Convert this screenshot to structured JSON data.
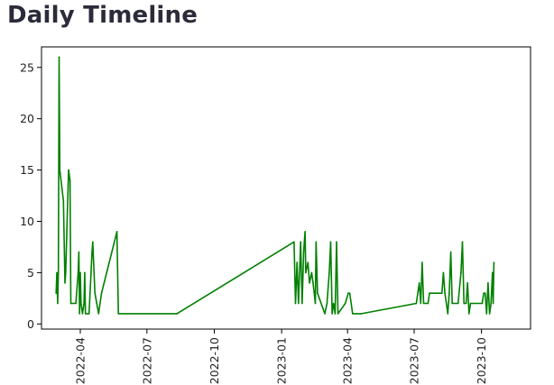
{
  "page": {
    "title": "Daily Timeline"
  },
  "chart_data": {
    "type": "line",
    "title": "",
    "xlabel": "",
    "ylabel": "",
    "x_axis": "date",
    "xlim": [
      "2022-02-07",
      "2023-12-07"
    ],
    "ylim": [
      -0.5,
      27
    ],
    "grid": false,
    "x_ticks": [
      "2022-04",
      "2022-07",
      "2022-10",
      "2023-01",
      "2023-04",
      "2023-07",
      "2023-10"
    ],
    "x_tick_dates": [
      "2022-04-01",
      "2022-07-01",
      "2022-10-01",
      "2023-01-01",
      "2023-04-01",
      "2023-07-01",
      "2023-10-01"
    ],
    "y_ticks": [
      0,
      5,
      10,
      15,
      20,
      25
    ],
    "series": [
      {
        "color": "#008000",
        "points": [
          [
            "2022-02-27",
            3
          ],
          [
            "2022-02-28",
            5
          ],
          [
            "2022-03-01",
            2
          ],
          [
            "2022-03-02",
            5
          ],
          [
            "2022-03-03",
            26
          ],
          [
            "2022-03-04",
            15
          ],
          [
            "2022-03-09",
            12
          ],
          [
            "2022-03-11",
            4
          ],
          [
            "2022-03-12",
            5
          ],
          [
            "2022-03-16",
            15
          ],
          [
            "2022-03-18",
            14
          ],
          [
            "2022-03-19",
            2
          ],
          [
            "2022-03-26",
            2
          ],
          [
            "2022-03-29",
            5
          ],
          [
            "2022-03-30",
            7
          ],
          [
            "2022-03-31",
            1
          ],
          [
            "2022-04-01",
            5
          ],
          [
            "2022-04-02",
            2
          ],
          [
            "2022-04-04",
            1
          ],
          [
            "2022-04-06",
            2
          ],
          [
            "2022-04-07",
            5
          ],
          [
            "2022-04-08",
            1
          ],
          [
            "2022-04-13",
            1
          ],
          [
            "2022-04-17",
            7
          ],
          [
            "2022-04-18",
            8
          ],
          [
            "2022-04-21",
            3
          ],
          [
            "2022-04-26",
            1
          ],
          [
            "2022-04-30",
            3
          ],
          [
            "2022-05-21",
            9
          ],
          [
            "2022-05-23",
            1
          ],
          [
            "2022-08-11",
            1
          ],
          [
            "2023-01-18",
            8
          ],
          [
            "2023-01-20",
            2
          ],
          [
            "2023-01-22",
            6
          ],
          [
            "2023-01-24",
            2
          ],
          [
            "2023-01-27",
            8
          ],
          [
            "2023-01-29",
            2
          ],
          [
            "2023-01-31",
            7
          ],
          [
            "2023-02-02",
            9
          ],
          [
            "2023-02-03",
            5
          ],
          [
            "2023-02-06",
            6
          ],
          [
            "2023-02-08",
            4
          ],
          [
            "2023-02-11",
            5
          ],
          [
            "2023-02-13",
            4
          ],
          [
            "2023-02-16",
            2
          ],
          [
            "2023-02-17",
            8
          ],
          [
            "2023-02-19",
            3
          ],
          [
            "2023-03-01",
            1
          ],
          [
            "2023-03-04",
            2
          ],
          [
            "2023-03-07",
            5
          ],
          [
            "2023-03-09",
            8
          ],
          [
            "2023-03-11",
            1
          ],
          [
            "2023-03-13",
            2
          ],
          [
            "2023-03-15",
            1
          ],
          [
            "2023-03-17",
            8
          ],
          [
            "2023-03-19",
            1
          ],
          [
            "2023-03-29",
            2
          ],
          [
            "2023-04-02",
            3
          ],
          [
            "2023-04-04",
            3
          ],
          [
            "2023-04-08",
            1
          ],
          [
            "2023-04-20",
            1
          ],
          [
            "2023-07-04",
            2
          ],
          [
            "2023-07-08",
            4
          ],
          [
            "2023-07-10",
            2
          ],
          [
            "2023-07-12",
            6
          ],
          [
            "2023-07-14",
            2
          ],
          [
            "2023-07-20",
            2
          ],
          [
            "2023-07-22",
            3
          ],
          [
            "2023-08-08",
            3
          ],
          [
            "2023-08-10",
            5
          ],
          [
            "2023-08-12",
            3
          ],
          [
            "2023-08-16",
            1
          ],
          [
            "2023-08-18",
            3
          ],
          [
            "2023-08-20",
            7
          ],
          [
            "2023-08-22",
            2
          ],
          [
            "2023-08-30",
            2
          ],
          [
            "2023-09-03",
            5
          ],
          [
            "2023-09-05",
            8
          ],
          [
            "2023-09-07",
            2
          ],
          [
            "2023-09-10",
            2
          ],
          [
            "2023-09-12",
            4
          ],
          [
            "2023-09-14",
            1
          ],
          [
            "2023-09-16",
            2
          ],
          [
            "2023-10-02",
            2
          ],
          [
            "2023-10-04",
            3
          ],
          [
            "2023-10-06",
            3
          ],
          [
            "2023-10-08",
            1
          ],
          [
            "2023-10-10",
            4
          ],
          [
            "2023-10-12",
            1
          ],
          [
            "2023-10-14",
            2
          ],
          [
            "2023-10-16",
            5
          ],
          [
            "2023-10-17",
            2
          ],
          [
            "2023-10-18",
            6
          ]
        ]
      }
    ]
  }
}
